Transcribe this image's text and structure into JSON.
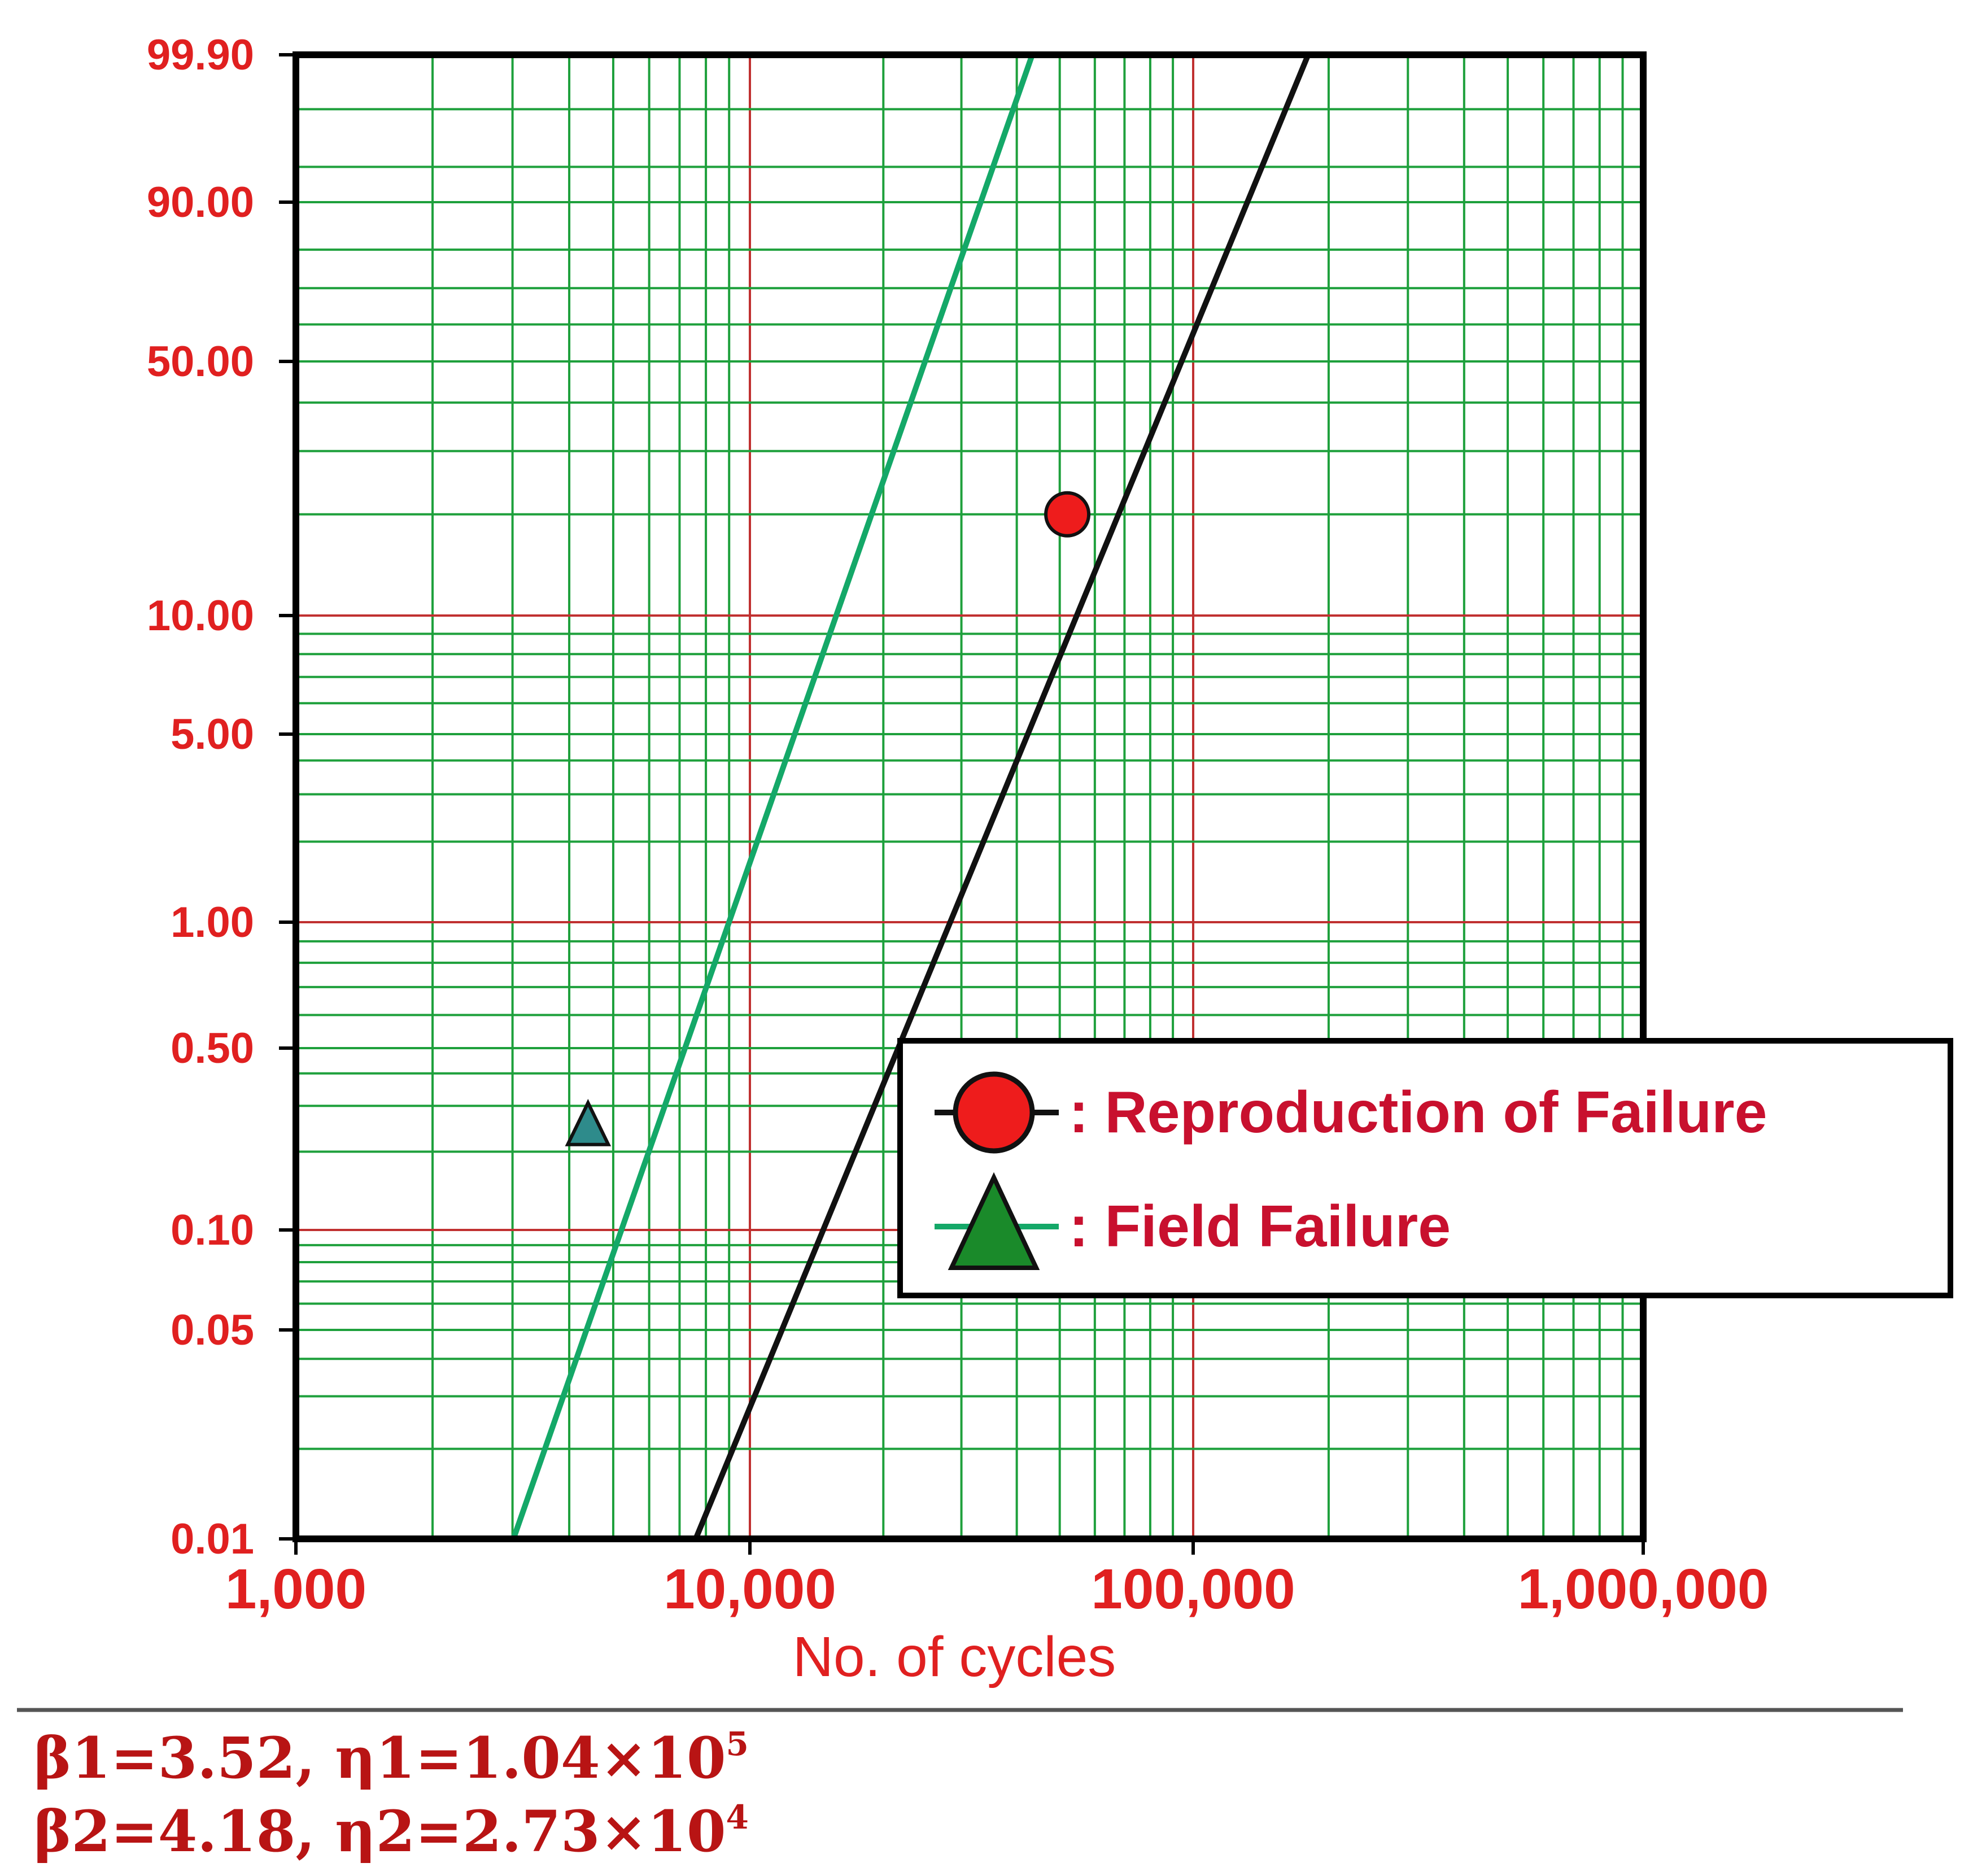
{
  "chart_data": {
    "type": "scatter",
    "scale": "weibull-probability",
    "xlabel": "No. of cycles",
    "ylabel": "",
    "x_scale": "log",
    "xlim": [
      1000,
      1000000
    ],
    "ylim": [
      0.01,
      99.9
    ],
    "x_ticks": [
      1000,
      10000,
      100000,
      1000000
    ],
    "x_tick_labels": [
      "1,000",
      "10,000",
      "100,000",
      "1,000,000"
    ],
    "y_ticks": [
      0.01,
      0.05,
      0.1,
      0.5,
      1,
      5,
      10,
      50,
      90,
      99.9
    ],
    "y_tick_labels": [
      "0.01",
      "0.05",
      "0.10",
      "0.50",
      "1.00",
      "5.00",
      "10.00",
      "50.00",
      "90.00",
      "99.90"
    ],
    "grid": true,
    "legend_position": "lower-right",
    "series": [
      {
        "name": ": Reproduction of Failure",
        "marker": "circle",
        "marker_color": "#ee1c1c",
        "line_color": "#111111",
        "points": [
          {
            "x": 52000,
            "y": 20
          }
        ],
        "fit_line": {
          "beta": 3.52,
          "eta": 104000
        }
      },
      {
        "name": ": Field Failure",
        "marker": "triangle",
        "marker_color": "#1a8a2a",
        "line_color": "#14a868",
        "points": [
          {
            "x": 4400,
            "y": 0.25
          }
        ],
        "fit_line": {
          "beta": 4.18,
          "eta": 27300
        }
      }
    ],
    "colors": {
      "grid_minor": "#1ea03c",
      "grid_major": "#c03030",
      "axis": "#000000",
      "ticks": "#e02020"
    }
  },
  "parameters": [
    {
      "text": "β1=3.52, η1=1.04×10",
      "exp": "5"
    },
    {
      "text": "β2=4.18, η2=2.73×10",
      "exp": "4"
    }
  ]
}
